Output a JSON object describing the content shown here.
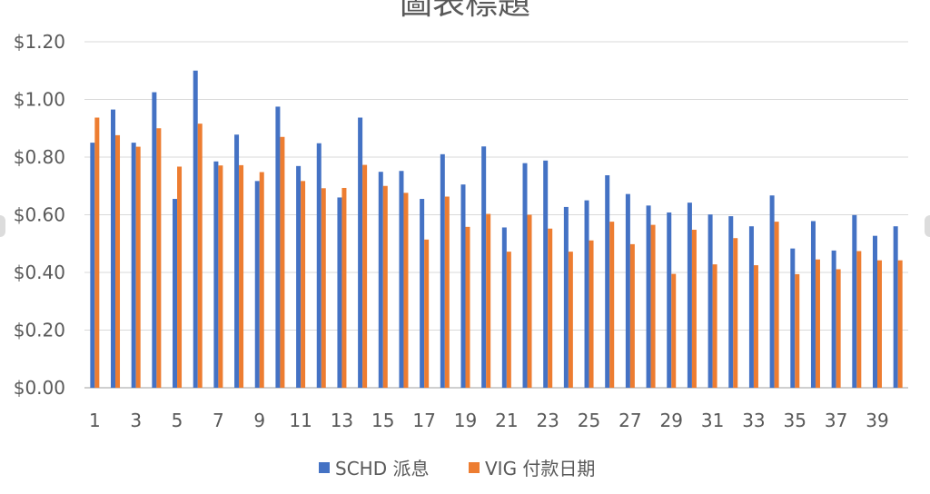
{
  "chart_data": {
    "type": "bar",
    "title": "圖表標題",
    "xlabel": "",
    "ylabel": "",
    "ylim": [
      0,
      1.2
    ],
    "y_ticks": [
      0,
      0.2,
      0.4,
      0.6,
      0.8,
      1.0,
      1.2
    ],
    "y_tick_labels": [
      "$0.00",
      "$0.20",
      "$0.40",
      "$0.60",
      "$0.80",
      "$1.00",
      "$1.20"
    ],
    "categories": [
      1,
      2,
      3,
      4,
      5,
      6,
      7,
      8,
      9,
      10,
      11,
      12,
      13,
      14,
      15,
      16,
      17,
      18,
      19,
      20,
      21,
      22,
      23,
      24,
      25,
      26,
      27,
      28,
      29,
      30,
      31,
      32,
      33,
      34,
      35,
      36,
      37,
      38,
      39,
      40
    ],
    "x_tick_labels": [
      "1",
      "3",
      "5",
      "7",
      "9",
      "11",
      "13",
      "15",
      "17",
      "19",
      "21",
      "23",
      "25",
      "27",
      "29",
      "31",
      "33",
      "35",
      "37",
      "39"
    ],
    "grid": true,
    "legend_position": "bottom",
    "series": [
      {
        "name": "SCHD 派息",
        "color": "#4472C4",
        "values": [
          0.85,
          0.965,
          0.85,
          1.025,
          0.655,
          1.1,
          0.785,
          0.878,
          0.717,
          0.975,
          0.769,
          0.848,
          0.66,
          0.937,
          0.749,
          0.752,
          0.655,
          0.81,
          0.705,
          0.837,
          0.556,
          0.779,
          0.788,
          0.627,
          0.65,
          0.737,
          0.672,
          0.632,
          0.608,
          0.642,
          0.601,
          0.595,
          0.56,
          0.667,
          0.483,
          0.578,
          0.476,
          0.599,
          0.527,
          0.56
        ]
      },
      {
        "name": "VIG 付款日期",
        "color": "#ED7D31",
        "values": [
          0.937,
          0.876,
          0.836,
          0.9,
          0.767,
          0.916,
          0.771,
          0.772,
          0.748,
          0.87,
          0.717,
          0.692,
          0.693,
          0.773,
          0.7,
          0.676,
          0.514,
          0.663,
          0.558,
          0.603,
          0.472,
          0.6,
          0.552,
          0.472,
          0.511,
          0.576,
          0.498,
          0.565,
          0.395,
          0.548,
          0.428,
          0.519,
          0.425,
          0.576,
          0.394,
          0.445,
          0.411,
          0.474,
          0.442,
          0.442
        ]
      }
    ]
  }
}
